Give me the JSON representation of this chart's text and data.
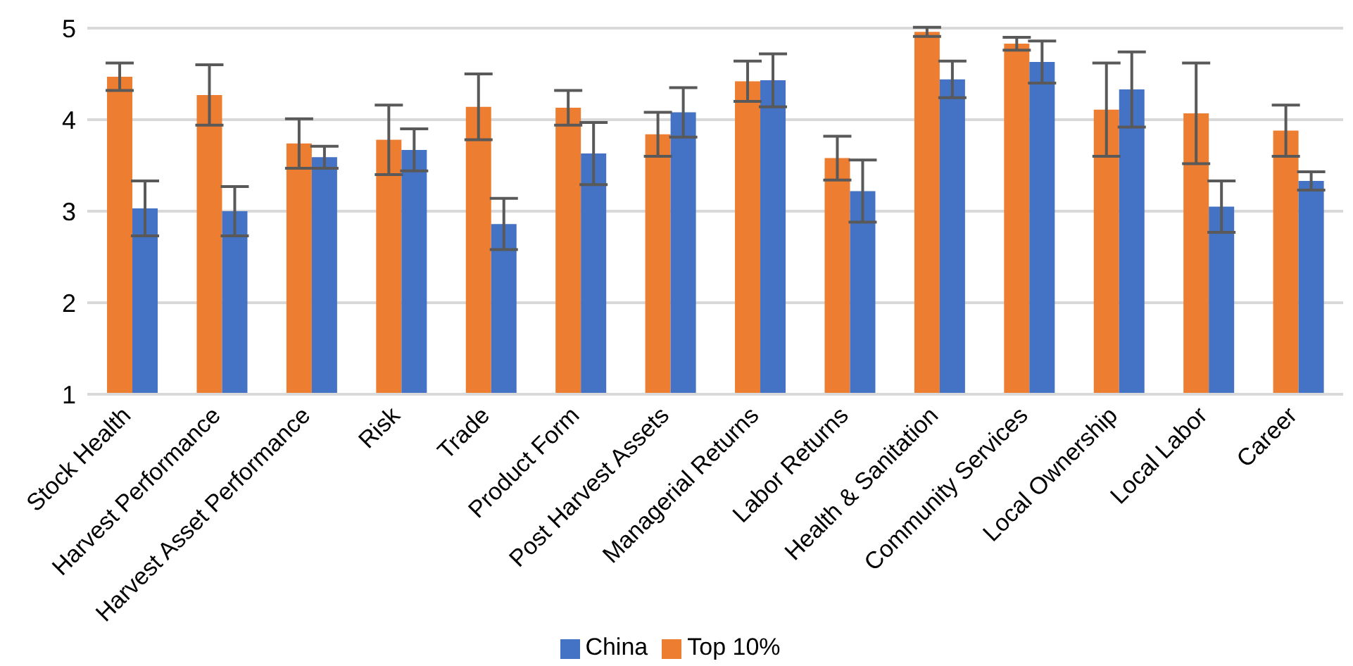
{
  "chart_data": {
    "type": "bar",
    "categories": [
      "Stock Health",
      "Harvest Performance",
      "Harvest Asset Performance",
      "Risk",
      "Trade",
      "Product Form",
      "Post Harvest Assets",
      "Managerial Returns",
      "Labor Returns",
      "Health & Sanitation",
      "Community Services",
      "Local Ownership",
      "Local Labor",
      "Career"
    ],
    "series": [
      {
        "name": "Top 10%",
        "color": "#ed7d31",
        "values": [
          4.47,
          4.27,
          3.74,
          3.78,
          4.14,
          4.13,
          3.84,
          4.42,
          3.58,
          4.96,
          4.83,
          4.11,
          4.07,
          3.88
        ],
        "errors": [
          0.15,
          0.33,
          0.27,
          0.38,
          0.36,
          0.19,
          0.24,
          0.22,
          0.24,
          0.05,
          0.07,
          0.51,
          0.55,
          0.28
        ]
      },
      {
        "name": "China",
        "color": "#4472c4",
        "values": [
          3.03,
          3.0,
          3.59,
          3.67,
          2.86,
          3.63,
          4.08,
          4.43,
          3.22,
          4.44,
          4.63,
          4.33,
          3.05,
          3.33
        ],
        "errors": [
          0.3,
          0.27,
          0.12,
          0.23,
          0.28,
          0.34,
          0.27,
          0.29,
          0.34,
          0.2,
          0.23,
          0.41,
          0.28,
          0.1
        ]
      }
    ],
    "ylim": [
      1,
      5
    ],
    "yticks": [
      1,
      2,
      3,
      4,
      5
    ],
    "grid": "y",
    "legend": "bottom"
  }
}
